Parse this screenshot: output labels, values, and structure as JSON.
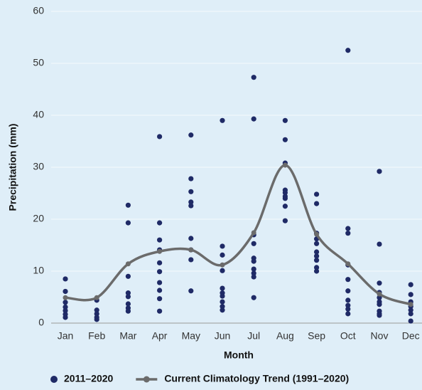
{
  "chart_data": {
    "type": "scatter",
    "x_label": "Month",
    "y_label": "Precipitation (mm)",
    "categories": [
      "Jan",
      "Feb",
      "Mar",
      "Apr",
      "May",
      "Jun",
      "Jul",
      "Aug",
      "Sep",
      "Oct",
      "Nov",
      "Dec"
    ],
    "ylim": [
      0,
      60
    ],
    "yticks": [
      0,
      10,
      20,
      30,
      40,
      50,
      60
    ],
    "grid": true,
    "legend": "bottom",
    "series": [
      {
        "name": "2011–2020",
        "type": "scatter",
        "color": "#1f2a66",
        "values": [
          [
            8.5,
            6.1,
            4.0,
            3.1,
            2.4,
            1.7,
            1.1
          ],
          [
            4.4,
            2.5,
            1.8,
            1.1,
            0.7
          ],
          [
            22.7,
            19.3,
            9.0,
            5.8,
            5.1,
            3.7,
            2.9,
            2.3
          ],
          [
            35.9,
            19.3,
            16.0,
            14.1,
            11.6,
            9.9,
            7.8,
            6.3,
            4.7,
            2.3
          ],
          [
            36.2,
            27.8,
            25.3,
            23.3,
            22.6,
            16.3,
            14.1,
            12.2,
            6.2
          ],
          [
            39.0,
            14.8,
            13.1,
            10.1,
            6.7,
            5.8,
            5.2,
            4.1,
            3.2,
            2.5
          ],
          [
            47.3,
            39.3,
            17.0,
            15.3,
            12.5,
            11.9,
            10.4,
            9.6,
            8.9,
            4.9
          ],
          [
            39.0,
            35.3,
            30.8,
            25.6,
            25.1,
            24.4,
            24.0,
            22.5,
            19.7
          ],
          [
            24.8,
            23.0,
            17.3,
            16.2,
            15.3,
            13.7,
            12.9,
            12.1,
            10.7,
            10.0
          ],
          [
            52.5,
            18.2,
            17.3,
            11.2,
            8.4,
            6.2,
            4.4,
            3.4,
            2.7,
            1.8
          ],
          [
            29.2,
            15.2,
            7.7,
            5.9,
            4.9,
            4.1,
            3.6,
            2.3,
            1.8,
            1.5
          ],
          [
            7.4,
            5.5,
            4.1,
            3.2,
            2.5,
            1.8,
            0.4
          ]
        ]
      },
      {
        "name": "Current Climatology Trend (1991–2020)",
        "type": "line",
        "color": "#6b6b6b",
        "values": [
          4.9,
          4.9,
          11.4,
          13.8,
          14.1,
          11.2,
          17.4,
          30.4,
          17.1,
          11.4,
          5.6,
          3.6
        ]
      }
    ]
  }
}
